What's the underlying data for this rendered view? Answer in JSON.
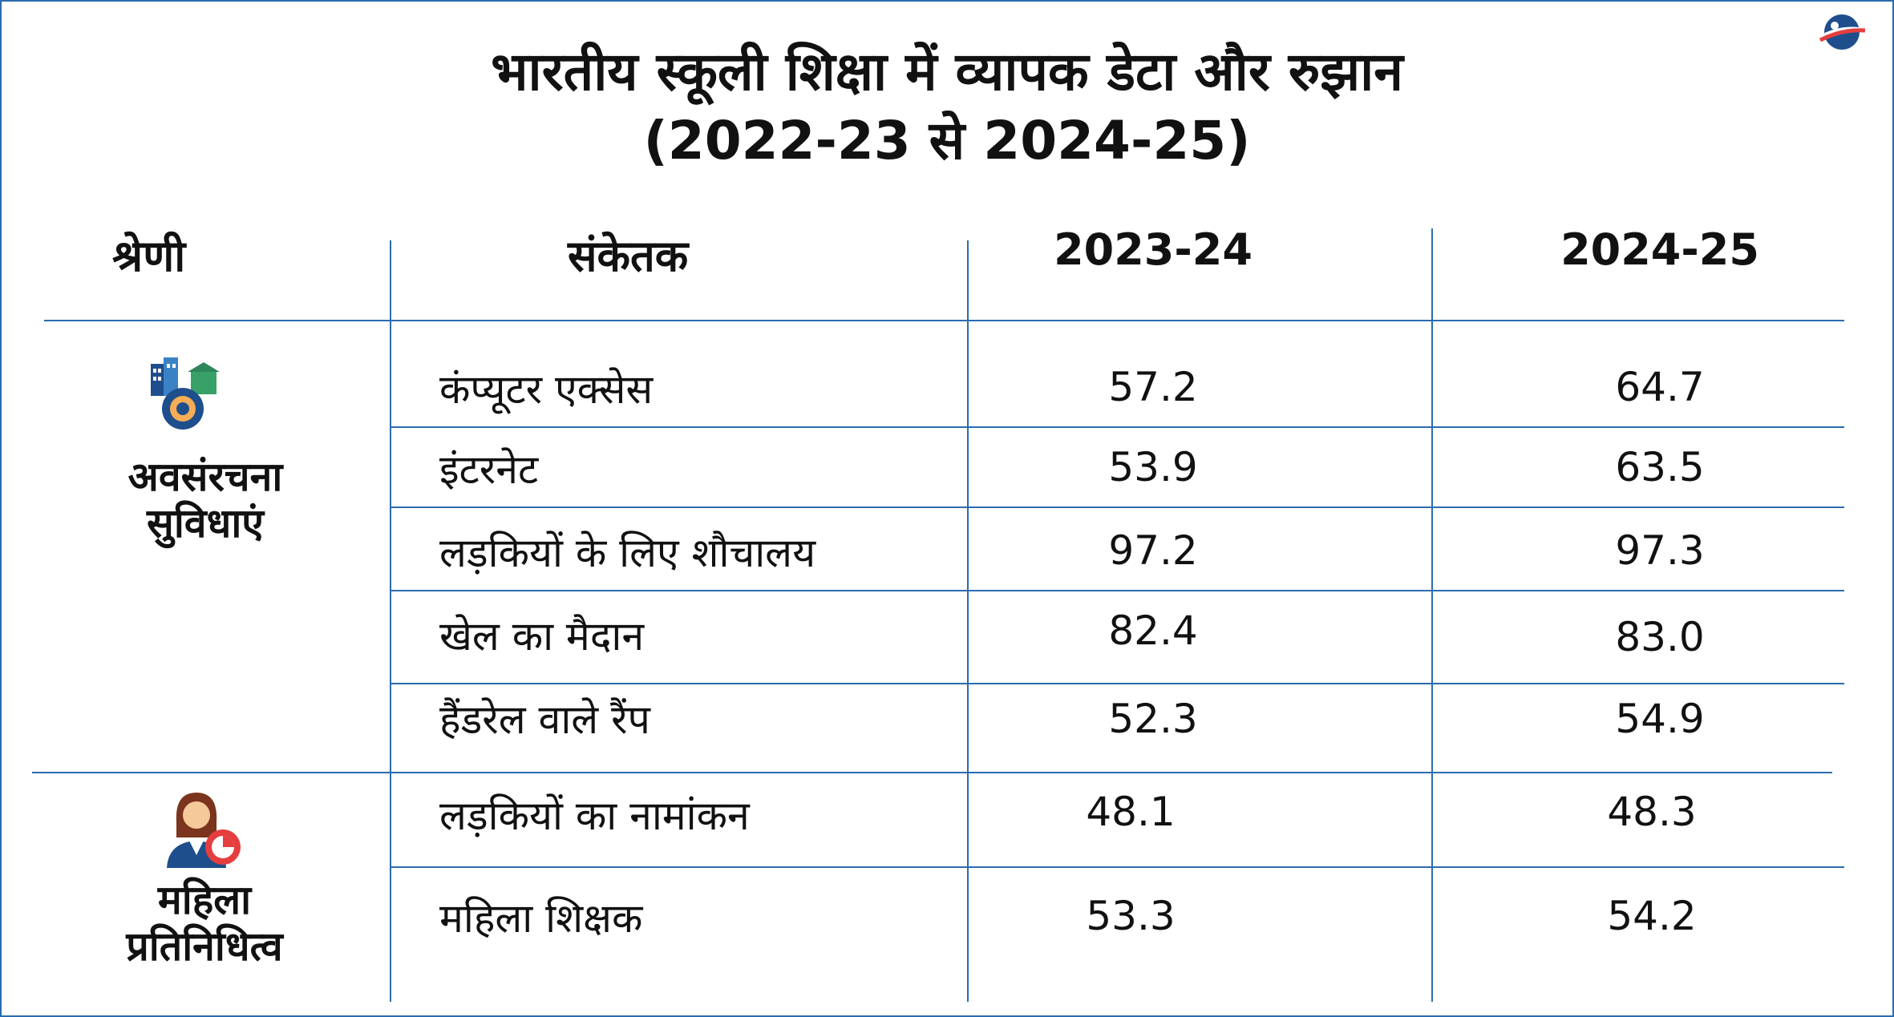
{
  "title_line1": "भारतीय स्कूली शिक्षा में व्यापक डेटा और रुझान",
  "title_line2": "(2022-23 से 2024-25)",
  "colors": {
    "border": "#2b6cb0",
    "accent": "#e53e3e",
    "icon_blue": "#1e4e8c"
  },
  "chart_data": {
    "type": "table",
    "headers": [
      "श्रेणी",
      "संकेतक",
      "2023-24",
      "2024-25"
    ],
    "groups": [
      {
        "category": [
          "अवसंरचना",
          "सुविधाएं"
        ],
        "icon": "infrastructure-gear-icon",
        "rows": [
          {
            "indicator": "कंप्यूटर एक्सेस",
            "y2023_24": "57.2",
            "y2024_25": "64.7"
          },
          {
            "indicator": "इंटरनेट",
            "y2023_24": "53.9",
            "y2024_25": "63.5"
          },
          {
            "indicator": "लड़कियों के लिए शौचालय",
            "y2023_24": "97.2",
            "y2024_25": "97.3"
          },
          {
            "indicator": "खेल का मैदान",
            "y2023_24": "82.4",
            "y2024_25": "83.0"
          },
          {
            "indicator": "हैंडरेल वाले रैंप",
            "y2023_24": "52.3",
            "y2024_25": "54.9"
          }
        ]
      },
      {
        "category": [
          "महिला",
          "प्रतिनिधित्व"
        ],
        "icon": "woman-chart-icon",
        "rows": [
          {
            "indicator": "लड़कियों का नामांकन",
            "y2023_24": "48.1",
            "y2024_25": "48.3"
          },
          {
            "indicator": "महिला शिक्षक",
            "y2023_24": "53.3",
            "y2024_25": "54.2"
          }
        ]
      }
    ]
  }
}
